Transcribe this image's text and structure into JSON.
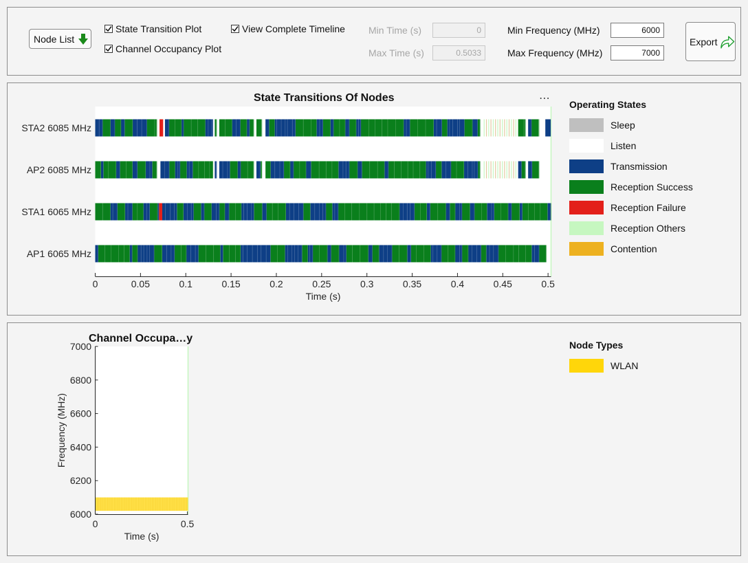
{
  "toolbar": {
    "node_list_label": "Node List",
    "state_transition_label": "State Transition Plot",
    "state_transition_checked": true,
    "channel_occupancy_label": "Channel Occupancy Plot",
    "channel_occupancy_checked": true,
    "complete_timeline_label": "View Complete Timeline",
    "complete_timeline_checked": true,
    "min_time_label": "Min Time (s)",
    "min_time_value": "0",
    "max_time_label": "Max Time (s)",
    "max_time_value": "0.5033",
    "min_freq_label": "Min Frequency (MHz)",
    "min_freq_value": "6000",
    "max_freq_label": "Max Frequency (MHz)",
    "max_freq_value": "7000",
    "export_label": "Export"
  },
  "state_legend": {
    "title": "Operating States",
    "items": [
      {
        "label": "Sleep",
        "color": "#bfbfbf"
      },
      {
        "label": "Listen",
        "color": "#ffffff"
      },
      {
        "label": "Transmission",
        "color": "#0e3f86"
      },
      {
        "label": "Reception Success",
        "color": "#0a7f1c"
      },
      {
        "label": "Reception Failure",
        "color": "#e3201a"
      },
      {
        "label": "Reception Others",
        "color": "#c6f7c0"
      },
      {
        "label": "Contention",
        "color": "#edb120"
      }
    ]
  },
  "node_legend": {
    "title": "Node Types",
    "items": [
      {
        "label": "WLAN",
        "color": "#ffd60a"
      }
    ]
  },
  "chart_data": [
    {
      "type": "bar",
      "title": "State Transitions Of Nodes",
      "xlabel": "Time (s)",
      "ylabel": "",
      "xlim": [
        0,
        0.5033
      ],
      "xticks": [
        "0",
        "0.05",
        "0.1",
        "0.15",
        "0.2",
        "0.25",
        "0.3",
        "0.35",
        "0.4",
        "0.45",
        "0.5"
      ],
      "categories": [
        "STA2 6085 MHz",
        "AP2 6085 MHz",
        "STA1 6065 MHz",
        "AP1 6065 MHz"
      ],
      "series": [
        {
          "name": "STA2 6085 MHz",
          "segments": [
            [
              0.0,
              0.068,
              "mix"
            ],
            [
              0.071,
              0.075,
              "Reception Failure"
            ],
            [
              0.077,
              0.13,
              "mix"
            ],
            [
              0.132,
              0.134,
              "mix"
            ],
            [
              0.137,
              0.175,
              "mix"
            ],
            [
              0.178,
              0.184,
              "mix"
            ],
            [
              0.188,
              0.425,
              "mix"
            ],
            [
              0.429,
              0.465,
              "Reception Others"
            ],
            [
              0.467,
              0.475,
              "mix"
            ],
            [
              0.478,
              0.49,
              "mix"
            ],
            [
              0.497,
              0.503,
              "Transmission"
            ]
          ]
        },
        {
          "name": "AP2 6085 MHz",
          "segments": [
            [
              0.0,
              0.068,
              "mix"
            ],
            [
              0.072,
              0.13,
              "mix"
            ],
            [
              0.132,
              0.134,
              "mix"
            ],
            [
              0.137,
              0.175,
              "mix"
            ],
            [
              0.178,
              0.184,
              "mix"
            ],
            [
              0.188,
              0.425,
              "mix"
            ],
            [
              0.429,
              0.465,
              "Reception Others"
            ],
            [
              0.467,
              0.475,
              "mix"
            ],
            [
              0.478,
              0.49,
              "mix"
            ]
          ]
        },
        {
          "name": "STA1 6065 MHz",
          "segments": [
            [
              0.0,
              0.0705,
              "mix"
            ],
            [
              0.0705,
              0.074,
              "Reception Failure"
            ],
            [
              0.074,
              0.5033,
              "mix"
            ]
          ]
        },
        {
          "name": "AP1 6065 MHz",
          "segments": [
            [
              0.0,
              0.498,
              "mix"
            ]
          ]
        }
      ]
    },
    {
      "type": "area",
      "title": "Channel Occupa…y",
      "xlabel": "Time (s)",
      "ylabel": "Frequency (MHz)",
      "xlim": [
        0,
        0.5033
      ],
      "ylim": [
        6000,
        7000
      ],
      "xticks": [
        "0",
        "0.5"
      ],
      "yticks": [
        "6000",
        "6200",
        "6400",
        "6600",
        "6800",
        "7000"
      ],
      "series": [
        {
          "name": "WLAN",
          "x": [
            0,
            0.5033
          ],
          "y_low": 6020,
          "y_high": 6100
        }
      ]
    }
  ]
}
